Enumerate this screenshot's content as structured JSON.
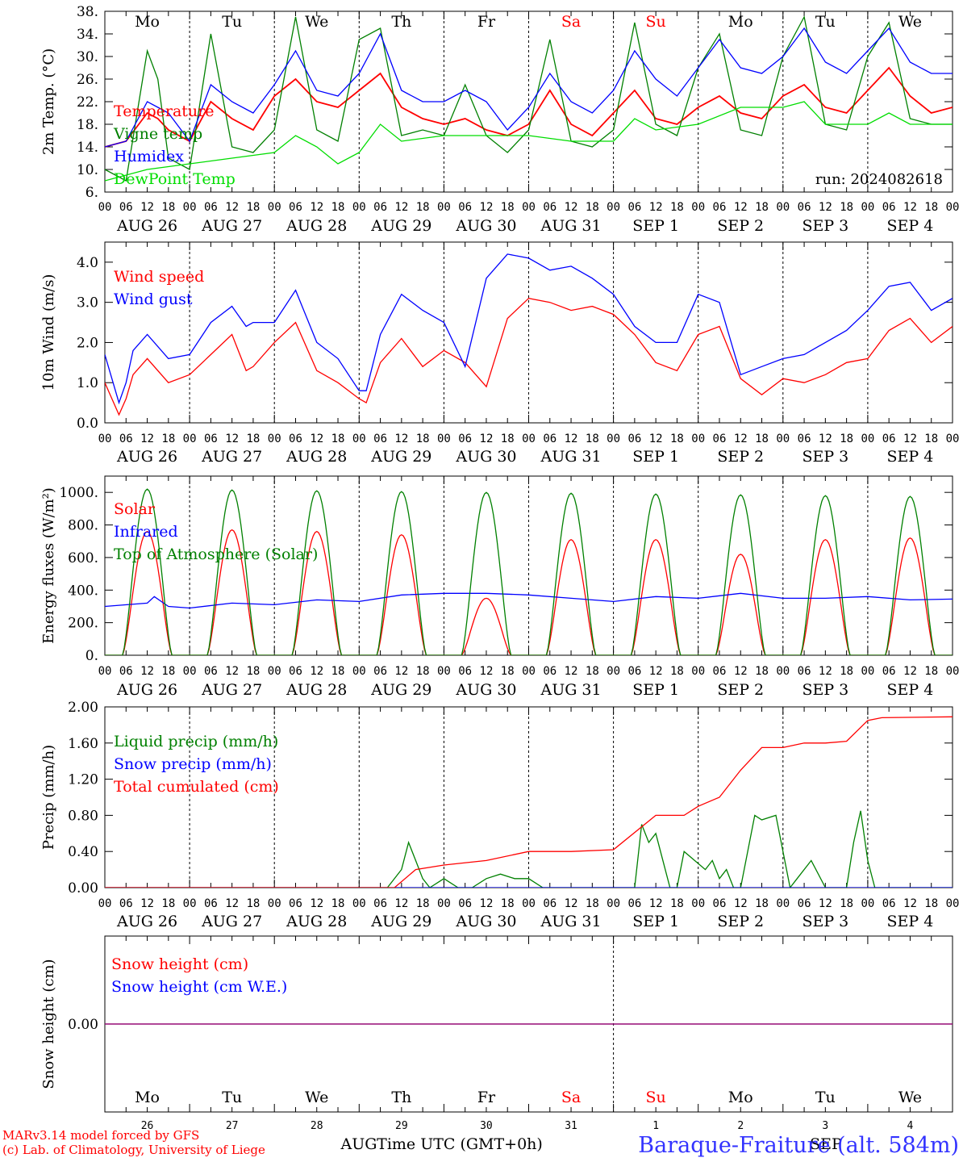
{
  "days": [
    "AUG 26",
    "AUG 27",
    "AUG 28",
    "AUG 29",
    "AUG 30",
    "AUG 31",
    "SEP  1",
    "SEP  2",
    "SEP  3",
    "SEP  4"
  ],
  "weekdays": [
    "Mo",
    "Tu",
    "We",
    "Th",
    "Fr",
    "Sa",
    "Su",
    "Mo",
    "Tu",
    "We"
  ],
  "weekday_colors": [
    "#000000",
    "#000000",
    "#000000",
    "#000000",
    "#000000",
    "#ff0000",
    "#ff0000",
    "#000000",
    "#000000",
    "#000000"
  ],
  "day_numbers": [
    "26",
    "27",
    "28",
    "29",
    "30",
    "31",
    "1",
    "2",
    "3",
    "4"
  ],
  "hour_ticks": [
    "00",
    "06",
    "12",
    "18"
  ],
  "end_tick": "00",
  "footer": {
    "credit1": "MARv3.14 model forced by GFS",
    "credit2": "(c) Lab. of Climatology, University of Liege",
    "xlabel": "Time UTC (GMT+0h)",
    "month_left": "AUG",
    "month_right": "SEP",
    "station": "Baraque-Fraiture (alt. 584m)"
  },
  "colors": {
    "red": "#ff0000",
    "green": "#008000",
    "blue": "#0000ff",
    "light_green": "#00dd00",
    "purple": "#800080",
    "axis": "#000000"
  },
  "chart_data": [
    {
      "type": "line",
      "ylabel": "2m Temp. (°C)",
      "ylim": [
        6,
        38
      ],
      "yticks": [
        "38.",
        "34.",
        "30.",
        "26.",
        "22.",
        "18.",
        "14.",
        "10.",
        "6."
      ],
      "annotation": "run: 2024082618",
      "series": [
        {
          "name": "Temperature",
          "color": "#ff0000",
          "x": [
            0,
            6,
            12,
            15,
            18,
            24,
            30,
            36,
            42,
            48,
            54,
            60,
            66,
            72,
            78,
            84,
            90,
            96,
            102,
            108,
            114,
            120,
            126,
            132,
            138,
            144,
            150,
            156,
            162,
            168,
            174,
            180,
            186,
            192,
            198,
            204,
            210,
            216,
            222,
            228,
            234,
            240
          ],
          "y": [
            14,
            15,
            20,
            19,
            17,
            15,
            22,
            19,
            17,
            23,
            26,
            22,
            21,
            24,
            27,
            21,
            19,
            18,
            19,
            17,
            16,
            18,
            24,
            18,
            16,
            20,
            24,
            19,
            18,
            21,
            23,
            20,
            19,
            23,
            25,
            21,
            20,
            24,
            28,
            23,
            20,
            21
          ]
        },
        {
          "name": "Vigne temp",
          "color": "#008000",
          "x": [
            0,
            6,
            12,
            15,
            18,
            24,
            30,
            36,
            42,
            48,
            54,
            60,
            66,
            72,
            78,
            84,
            90,
            96,
            102,
            108,
            114,
            120,
            126,
            132,
            138,
            144,
            150,
            156,
            162,
            168,
            174,
            180,
            186,
            192,
            198,
            204,
            210,
            216,
            222,
            228,
            234,
            240
          ],
          "y": [
            10,
            8,
            31,
            26,
            12,
            10,
            34,
            14,
            13,
            17,
            37,
            17,
            15,
            33,
            35,
            16,
            17,
            16,
            25,
            16,
            13,
            17,
            33,
            15,
            14,
            17,
            36,
            18,
            16,
            28,
            34,
            17,
            16,
            30,
            37,
            18,
            17,
            30,
            36,
            19,
            18,
            18
          ]
        },
        {
          "name": "Humidex",
          "color": "#0000ff",
          "x": [
            0,
            6,
            12,
            15,
            18,
            24,
            30,
            36,
            42,
            48,
            54,
            60,
            66,
            72,
            78,
            84,
            90,
            96,
            102,
            108,
            114,
            120,
            126,
            132,
            138,
            144,
            150,
            156,
            162,
            168,
            174,
            180,
            186,
            192,
            198,
            204,
            210,
            216,
            222,
            228,
            234,
            240
          ],
          "y": [
            14,
            15,
            22,
            21,
            20,
            15,
            25,
            22,
            20,
            25,
            31,
            24,
            23,
            27,
            34,
            24,
            22,
            22,
            24,
            22,
            17,
            21,
            27,
            22,
            20,
            24,
            31,
            26,
            23,
            28,
            33,
            28,
            27,
            30,
            35,
            29,
            27,
            31,
            35,
            29,
            27,
            27
          ]
        },
        {
          "name": "DewPoint Temp",
          "color": "#00dd00",
          "x": [
            0,
            12,
            24,
            36,
            48,
            54,
            60,
            66,
            72,
            78,
            84,
            96,
            108,
            120,
            132,
            144,
            150,
            156,
            168,
            180,
            192,
            198,
            204,
            216,
            222,
            228,
            240
          ],
          "y": [
            8,
            10,
            11,
            12,
            13,
            16,
            14,
            11,
            13,
            18,
            15,
            16,
            16,
            16,
            15,
            15,
            19,
            17,
            18,
            21,
            21,
            22,
            18,
            18,
            20,
            18,
            18
          ]
        }
      ]
    },
    {
      "type": "line",
      "ylabel": "10m Wind (m/s)",
      "ylim": [
        0,
        4.5
      ],
      "yticks": [
        "4.0",
        "3.0",
        "2.0",
        "1.0",
        "0.0"
      ],
      "series": [
        {
          "name": "Wind speed",
          "color": "#ff0000",
          "x": [
            0,
            4,
            6,
            8,
            12,
            18,
            24,
            30,
            36,
            40,
            42,
            48,
            54,
            60,
            66,
            72,
            74,
            78,
            84,
            90,
            96,
            102,
            108,
            114,
            120,
            126,
            132,
            138,
            144,
            150,
            156,
            162,
            168,
            174,
            180,
            186,
            192,
            198,
            204,
            210,
            216,
            222,
            228,
            234,
            240
          ],
          "y": [
            1.0,
            0.2,
            0.6,
            1.2,
            1.6,
            1.0,
            1.2,
            1.7,
            2.2,
            1.3,
            1.4,
            2.0,
            2.5,
            1.3,
            1.0,
            0.6,
            0.5,
            1.5,
            2.1,
            1.4,
            1.8,
            1.5,
            0.9,
            2.6,
            3.1,
            3.0,
            2.8,
            2.9,
            2.7,
            2.2,
            1.5,
            1.3,
            2.2,
            2.4,
            1.1,
            0.7,
            1.1,
            1.0,
            1.2,
            1.5,
            1.6,
            2.3,
            2.6,
            2.0,
            2.4
          ]
        },
        {
          "name": "Wind gust",
          "color": "#0000ff",
          "x": [
            0,
            4,
            6,
            8,
            12,
            18,
            24,
            30,
            36,
            40,
            42,
            48,
            54,
            60,
            66,
            72,
            74,
            78,
            84,
            90,
            96,
            102,
            108,
            114,
            120,
            126,
            132,
            138,
            144,
            150,
            156,
            162,
            168,
            174,
            180,
            186,
            192,
            198,
            204,
            210,
            216,
            222,
            228,
            234,
            240
          ],
          "y": [
            1.7,
            0.5,
            1.0,
            1.8,
            2.2,
            1.6,
            1.7,
            2.5,
            2.9,
            2.4,
            2.5,
            2.5,
            3.3,
            2.0,
            1.6,
            0.8,
            0.8,
            2.2,
            3.2,
            2.8,
            2.5,
            1.4,
            3.6,
            4.2,
            4.1,
            3.8,
            3.9,
            3.6,
            3.2,
            2.4,
            2.0,
            2.0,
            3.2,
            3.0,
            1.2,
            1.4,
            1.6,
            1.7,
            2.0,
            2.3,
            2.8,
            3.4,
            3.5,
            2.8,
            3.1
          ]
        }
      ]
    },
    {
      "type": "line",
      "ylabel": "Energy fluxes (W/m²)",
      "ylim": [
        0,
        1100
      ],
      "yticks": [
        "1000.",
        "800.",
        "600.",
        "400.",
        "200.",
        "0."
      ],
      "series": [
        {
          "name": "Solar",
          "color": "#ff0000",
          "peaks": [
            760,
            770,
            760,
            740,
            350,
            710,
            710,
            620,
            710,
            720
          ]
        },
        {
          "name": "Infrared",
          "color": "#0000ff",
          "x": [
            0,
            12,
            14,
            18,
            24,
            36,
            48,
            60,
            72,
            84,
            96,
            108,
            120,
            132,
            144,
            156,
            168,
            180,
            192,
            204,
            216,
            228,
            240
          ],
          "y": [
            300,
            320,
            360,
            300,
            290,
            320,
            310,
            340,
            330,
            370,
            380,
            380,
            370,
            350,
            330,
            360,
            350,
            380,
            350,
            350,
            360,
            340,
            345
          ]
        },
        {
          "name": "Top of Atmosphere (Solar)",
          "color": "#008000",
          "peaks": [
            1020,
            1015,
            1010,
            1005,
            1000,
            995,
            990,
            985,
            980,
            975
          ]
        }
      ]
    },
    {
      "type": "line",
      "ylabel": "Precip (mm/h)",
      "ylim": [
        0,
        2.0
      ],
      "yticks": [
        "2.00",
        "1.60",
        "1.20",
        "0.80",
        "0.40",
        "0.00"
      ],
      "series": [
        {
          "name": "Liquid precip (mm/h)",
          "color": "#008000",
          "x": [
            0,
            80,
            84,
            86,
            88,
            90,
            92,
            96,
            100,
            104,
            108,
            112,
            116,
            120,
            124,
            144,
            150,
            152,
            154,
            156,
            158,
            160,
            162,
            164,
            170,
            172,
            174,
            176,
            178,
            180,
            184,
            186,
            190,
            194,
            196,
            200,
            204,
            210,
            212,
            214,
            216,
            218,
            222,
            240
          ],
          "y": [
            0,
            0,
            0.2,
            0.5,
            0.3,
            0.1,
            0,
            0.1,
            0,
            0,
            0.1,
            0.15,
            0.1,
            0.1,
            0,
            0,
            0,
            0.7,
            0.5,
            0.6,
            0.3,
            0,
            0,
            0.4,
            0.2,
            0.3,
            0.1,
            0.2,
            0,
            0,
            0.8,
            0.75,
            0.8,
            0,
            0.1,
            0.3,
            0,
            0,
            0.5,
            0.85,
            0.3,
            0,
            0,
            0
          ]
        },
        {
          "name": "Snow precip (mm/h)",
          "color": "#0000ff",
          "x": [
            0,
            240
          ],
          "y": [
            0,
            0
          ]
        },
        {
          "name": "Total cumulated (cm)",
          "color": "#ff0000",
          "x": [
            0,
            82,
            88,
            96,
            108,
            120,
            132,
            144,
            156,
            164,
            168,
            174,
            180,
            186,
            192,
            198,
            204,
            210,
            216,
            220,
            240
          ],
          "y": [
            0,
            0,
            0.2,
            0.25,
            0.3,
            0.4,
            0.4,
            0.42,
            0.8,
            0.8,
            0.9,
            1.0,
            1.3,
            1.55,
            1.55,
            1.6,
            1.6,
            1.62,
            1.85,
            1.88,
            1.89
          ]
        }
      ]
    },
    {
      "type": "line",
      "ylabel": "Snow height (cm)",
      "ylim": [
        -0.5,
        0.5
      ],
      "yticks": [
        "0.00"
      ],
      "series": [
        {
          "name": "Snow height (cm)",
          "color": "#ff0000",
          "x": [
            0,
            240
          ],
          "y": [
            0,
            0
          ]
        },
        {
          "name": "Snow height (cm W.E.)",
          "color": "#0000ff",
          "x": [
            0,
            240
          ],
          "y": [
            0,
            0
          ]
        }
      ]
    }
  ]
}
